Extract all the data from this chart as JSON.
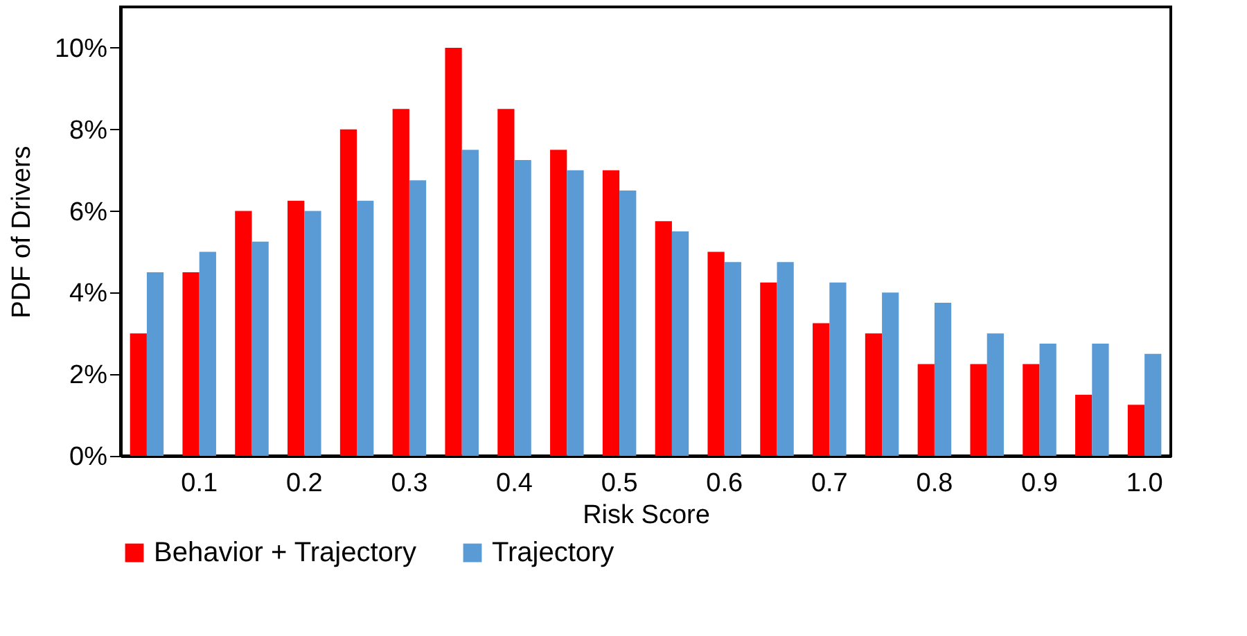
{
  "chart_data": {
    "type": "bar",
    "xlabel": "Risk Score",
    "ylabel": "PDF of Drivers",
    "categories": [
      null,
      "0.1",
      null,
      "0.2",
      null,
      "0.3",
      null,
      "0.4",
      null,
      "0.5",
      null,
      "0.6",
      null,
      "0.7",
      null,
      "0.8",
      null,
      "0.9",
      null,
      "1.0"
    ],
    "series": [
      {
        "name": "Behavior + Trajectory",
        "color": "#ff0000",
        "values": [
          3,
          4.5,
          6,
          6.25,
          8,
          8.5,
          10,
          8.5,
          7.5,
          7,
          5.75,
          5,
          4.25,
          3.25,
          3,
          2.25,
          2.25,
          2.25,
          1.5,
          1.25
        ]
      },
      {
        "name": "Trajectory",
        "color": "#5b9bd5",
        "values": [
          4.5,
          5,
          5.25,
          6,
          6.25,
          6.75,
          7.5,
          7.25,
          7,
          6.5,
          5.5,
          4.75,
          4.75,
          4.25,
          4,
          3.75,
          3,
          2.75,
          2.75,
          2.5
        ]
      }
    ],
    "ylim": [
      0,
      11
    ],
    "yticks": [
      {
        "value": 0,
        "label": "0%"
      },
      {
        "value": 2,
        "label": "2%"
      },
      {
        "value": 4,
        "label": "4%"
      },
      {
        "value": 6,
        "label": "6%"
      },
      {
        "value": 8,
        "label": "8%"
      },
      {
        "value": 10,
        "label": "10%"
      }
    ],
    "grid": false,
    "legend": "bottom"
  }
}
